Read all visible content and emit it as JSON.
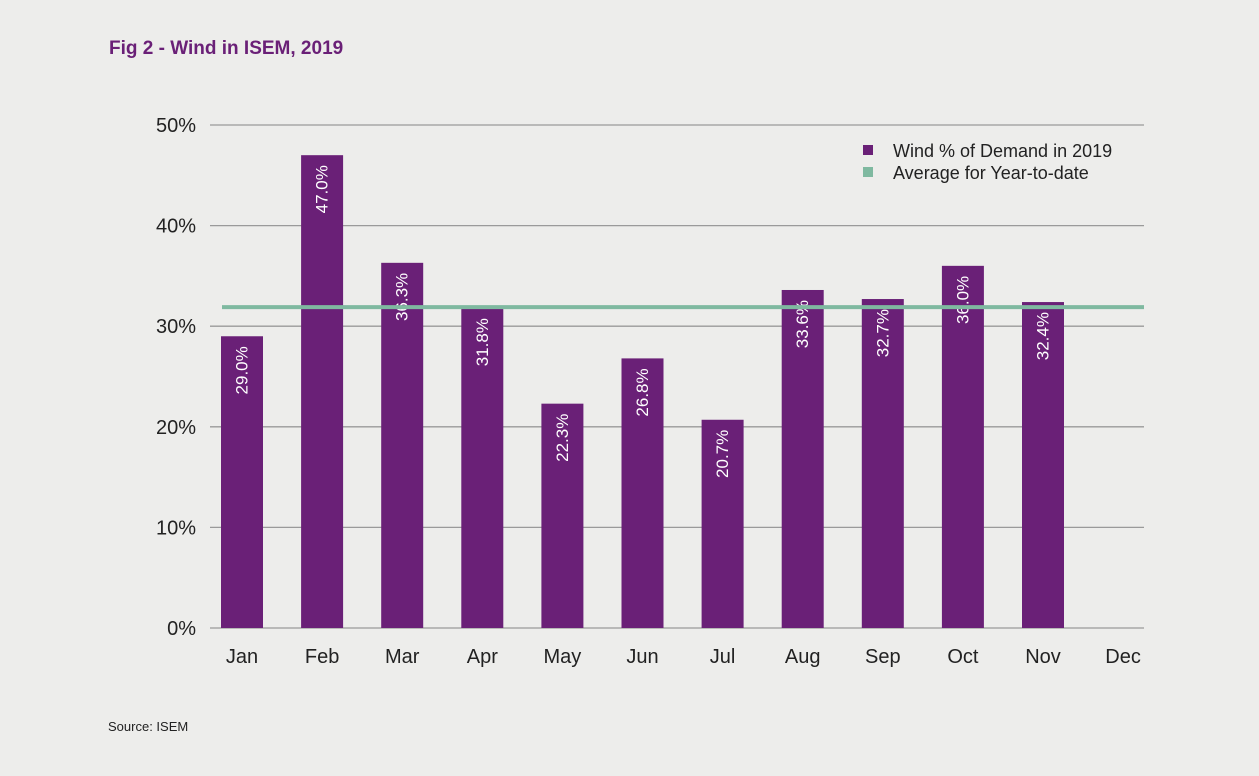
{
  "figure": {
    "title": "Fig 2 - Wind in ISEM, 2019",
    "source": "Source: ISEM"
  },
  "chart_data": {
    "type": "bar",
    "title": "Fig 2 - Wind in ISEM, 2019",
    "xlabel": "",
    "ylabel": "",
    "categories": [
      "Jan",
      "Feb",
      "Mar",
      "Apr",
      "May",
      "Jun",
      "Jul",
      "Aug",
      "Sep",
      "Oct",
      "Nov",
      "Dec"
    ],
    "series": [
      {
        "name": "Wind % of Demand in 2019",
        "type": "bar",
        "color": "#6a2077",
        "values": [
          29.0,
          47.0,
          36.3,
          31.8,
          22.3,
          26.8,
          20.7,
          33.6,
          32.7,
          36.0,
          32.4,
          null
        ],
        "labels": [
          "29.0%",
          "47.0%",
          "36.3%",
          "31.8%",
          "22.3%",
          "26.8%",
          "20.7%",
          "33.6%",
          "32.7%",
          "36.0%",
          "32.4%",
          ""
        ]
      },
      {
        "name": "Average for Year-to-date",
        "type": "line",
        "color": "#7fb9a0",
        "value": 31.9
      }
    ],
    "ylim": [
      0,
      50
    ],
    "yticks": [
      0,
      10,
      20,
      30,
      40,
      50
    ],
    "ytick_labels": [
      "0%",
      "10%",
      "20%",
      "30%",
      "40%",
      "50%"
    ],
    "grid": true,
    "legend": "top-right"
  }
}
